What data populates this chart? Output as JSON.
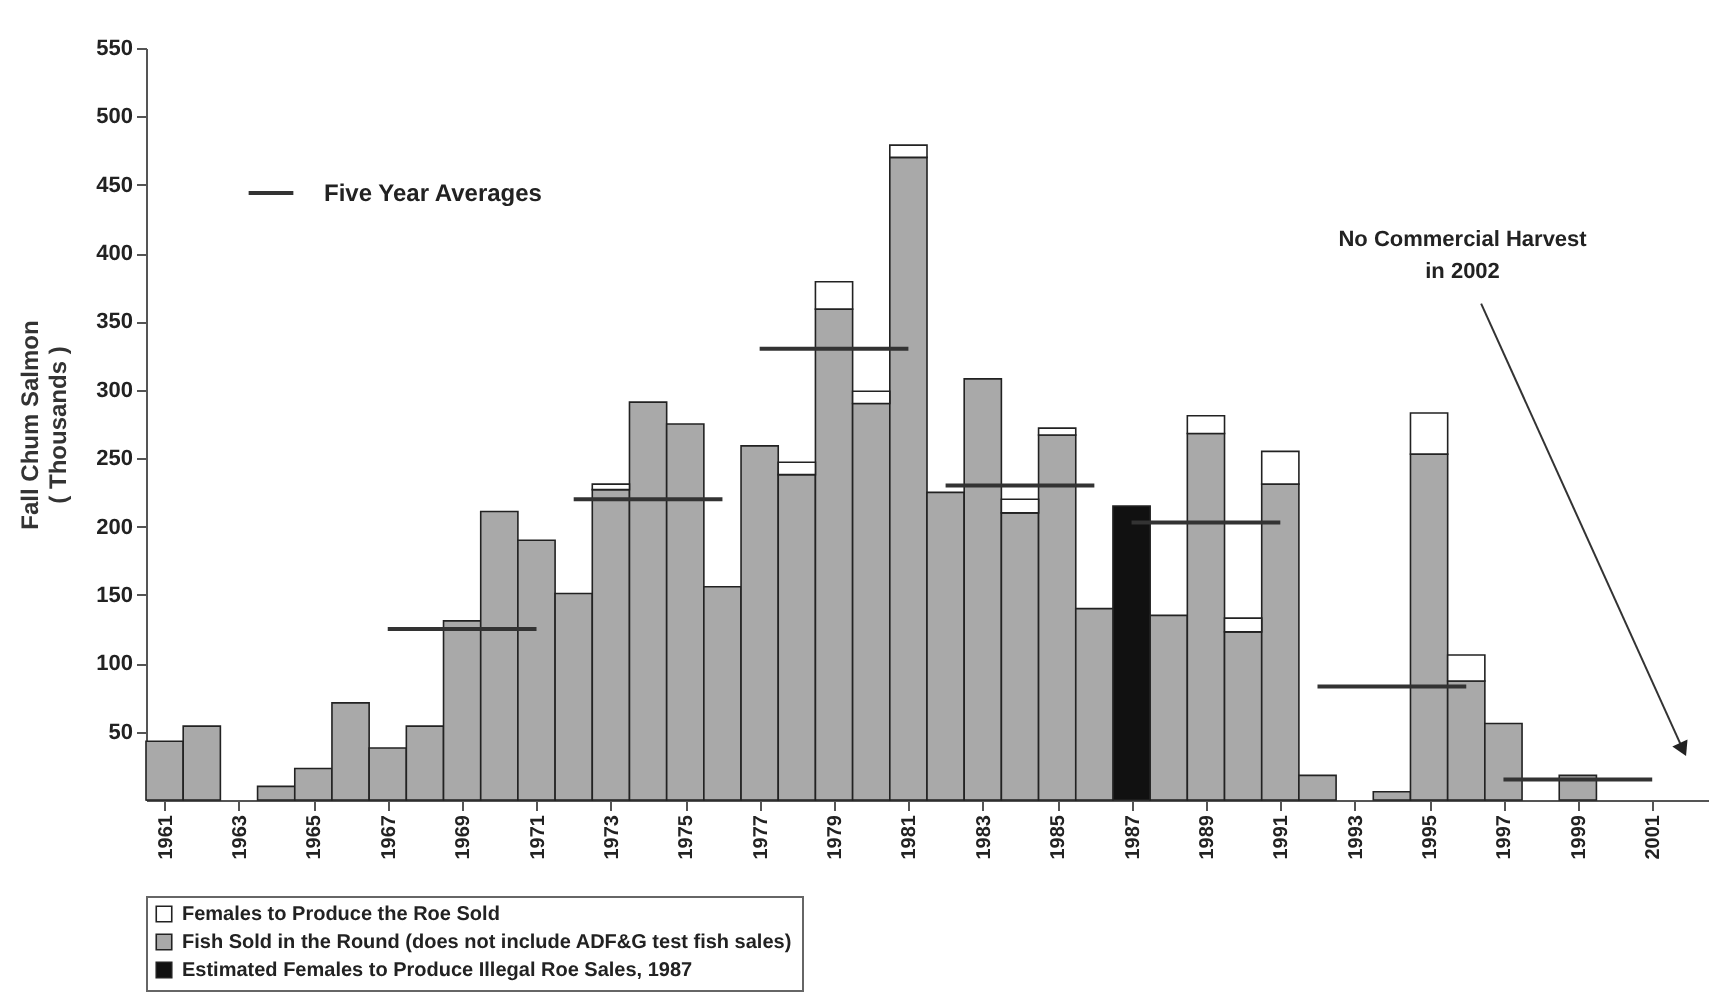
{
  "chart_data": {
    "type": "bar",
    "stacked": true,
    "ylabel": "Fall Chum Salmon\n( Thousands )",
    "x": [
      1961,
      1962,
      1963,
      1964,
      1965,
      1966,
      1967,
      1968,
      1969,
      1970,
      1971,
      1972,
      1973,
      1974,
      1975,
      1976,
      1977,
      1978,
      1979,
      1980,
      1981,
      1982,
      1983,
      1984,
      1985,
      1986,
      1987,
      1988,
      1989,
      1990,
      1991,
      1992,
      1993,
      1994,
      1995,
      1996,
      1997,
      1998,
      1999,
      2000,
      2001,
      2002
    ],
    "xlim": [
      1960.5,
      2002.5
    ],
    "xticks": [
      1961,
      1963,
      1965,
      1967,
      1969,
      1971,
      1973,
      1975,
      1977,
      1979,
      1981,
      1983,
      1985,
      1987,
      1989,
      1991,
      1993,
      1995,
      1997,
      1999,
      2001
    ],
    "ylim": [
      0,
      550
    ],
    "yticks": [
      50,
      100,
      150,
      200,
      250,
      300,
      350,
      400,
      450,
      500,
      550
    ],
    "legend": "bottom",
    "annotations": [
      "No Commercial Harvest\nin 2002"
    ],
    "series": [
      {
        "name": "Estimated Females to Produce Illegal Roe Sales, 1987",
        "color": "#111111",
        "values": [
          null,
          null,
          null,
          null,
          null,
          null,
          null,
          null,
          null,
          null,
          null,
          null,
          null,
          null,
          null,
          null,
          null,
          null,
          null,
          null,
          null,
          null,
          null,
          null,
          null,
          null,
          215,
          null,
          null,
          null,
          null,
          null,
          null,
          null,
          null,
          null,
          null,
          null,
          null,
          null,
          null,
          null
        ]
      },
      {
        "name": "Fish Sold in the Round (does not include ADF&G test fish sales)",
        "color": "#a9a9a9",
        "values": [
          43,
          54,
          0,
          10,
          23,
          71,
          38,
          54,
          131,
          211,
          190,
          151,
          227,
          291,
          275,
          156,
          259,
          238,
          359,
          290,
          470,
          225,
          308,
          210,
          267,
          140,
          0,
          135,
          268,
          123,
          231,
          18,
          0,
          6,
          253,
          87,
          56,
          0,
          18,
          0,
          0,
          0
        ]
      },
      {
        "name": "Females to Produce the Roe Sold",
        "color": "#ffffff",
        "values": [
          null,
          null,
          null,
          null,
          null,
          null,
          null,
          null,
          null,
          null,
          null,
          null,
          4,
          null,
          null,
          null,
          null,
          9,
          20,
          9,
          9,
          null,
          null,
          10,
          5,
          null,
          null,
          null,
          13,
          10,
          24,
          null,
          null,
          null,
          30,
          19,
          null,
          null,
          null,
          null,
          null,
          null
        ]
      },
      {
        "type": "line",
        "name": "Five Year Averages",
        "color": "#333333",
        "x": [
          1967,
          1971
        ],
        "values": [
          125,
          125
        ]
      },
      {
        "type": "line",
        "color": "#333333",
        "x": [
          1972,
          1976
        ],
        "values": [
          220,
          220
        ]
      },
      {
        "type": "line",
        "color": "#333333",
        "x": [
          1977,
          1981
        ],
        "values": [
          330,
          330
        ]
      },
      {
        "type": "line",
        "color": "#333333",
        "x": [
          1982,
          1986
        ],
        "values": [
          230,
          230
        ]
      },
      {
        "type": "line",
        "color": "#333333",
        "x": [
          1987,
          1991
        ],
        "values": [
          203,
          203
        ]
      },
      {
        "type": "line",
        "color": "#333333",
        "x": [
          1992,
          1996
        ],
        "values": [
          83,
          83
        ]
      },
      {
        "type": "line",
        "color": "#333333",
        "x": [
          1997,
          2001
        ],
        "values": [
          15,
          15
        ]
      }
    ]
  }
}
